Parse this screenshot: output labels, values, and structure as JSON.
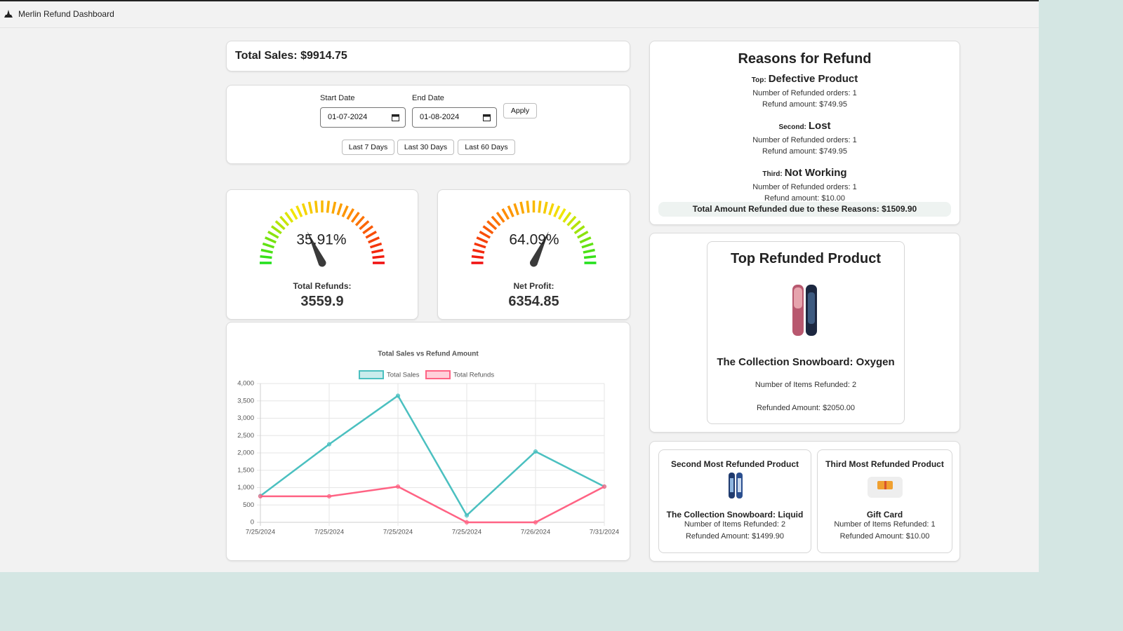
{
  "header": {
    "title": "Merlin Refund Dashboard"
  },
  "total_sales": "Total Sales: $9914.75",
  "date_filter": {
    "start_label": "Start Date",
    "start_value": "01-07-2024",
    "end_label": "End Date",
    "end_value": "01-08-2024",
    "apply": "Apply",
    "presets": [
      "Last 7 Days",
      "Last 30 Days",
      "Last 60 Days"
    ]
  },
  "gauges": [
    {
      "value": 35.91,
      "value_label": "35.91%",
      "label": "Total Refunds:",
      "amount": "3559.9",
      "colors": [
        "#22e01b",
        "#f2e600",
        "#ff8c00",
        "#f01010"
      ]
    },
    {
      "value": 64.09,
      "value_label": "64.09%",
      "label": "Net Profit:",
      "amount": "6354.85",
      "colors": [
        "#f01010",
        "#ff8c00",
        "#f2e600",
        "#22e01b"
      ]
    }
  ],
  "chart_data": {
    "type": "line",
    "title": "Total Sales vs Refund Amount",
    "categories": [
      "7/25/2024",
      "7/25/2024",
      "7/25/2024",
      "7/25/2024",
      "7/26/2024",
      "7/31/2024"
    ],
    "series": [
      {
        "name": "Total Sales",
        "color": "#4bc0c0",
        "values": [
          760,
          2250,
          3650,
          200,
          2040,
          1030
        ]
      },
      {
        "name": "Total Refunds",
        "color": "#ff6384",
        "values": [
          750,
          750,
          1030,
          0,
          0,
          1030
        ]
      }
    ],
    "ylim": [
      0,
      4000
    ],
    "yticks": [
      0,
      500,
      {
        "value": 1000,
        "label": "1,000"
      },
      {
        "value": 1500,
        "label": "1,500"
      },
      {
        "value": 2000,
        "label": "2,000"
      },
      {
        "value": 2500,
        "label": "2,500"
      },
      {
        "value": 3000,
        "label": "3,000"
      },
      {
        "value": 3500,
        "label": "3,500"
      },
      {
        "value": 4000,
        "label": "4,000"
      }
    ],
    "grid": true
  },
  "reasons": {
    "title": "Reasons for Refund",
    "items": [
      {
        "rank": "Top:",
        "reason": "Defective Product",
        "orders": "Number of Refunded orders: 1",
        "amount": "Refund amount: $749.95"
      },
      {
        "rank": "Second:",
        "reason": "Lost",
        "orders": "Number of Refunded orders: 1",
        "amount": "Refund amount: $749.95"
      },
      {
        "rank": "Third:",
        "reason": "Not Working",
        "orders": "Number of Refunded orders: 1",
        "amount": "Refund amount: $10.00"
      }
    ],
    "total_label": "Total Amount Refunded due to these Reasons:",
    "total_value": "$1509.90"
  },
  "top_product": {
    "title": "Top Refunded Product",
    "name": "The Collection Snowboard: Oxygen",
    "items": "Number of Items Refunded: 2",
    "amount": "Refunded Amount: $2050.00"
  },
  "other_products": [
    {
      "title": "Second Most Refunded Product",
      "name": "The Collection Snowboard: Liquid",
      "items": "Number of Items Refunded: 2",
      "amount": "Refunded Amount: $1499.90"
    },
    {
      "title": "Third Most Refunded Product",
      "name": "Gift Card",
      "items": "Number of Items Refunded: 1",
      "amount": "Refunded Amount: $10.00"
    }
  ]
}
